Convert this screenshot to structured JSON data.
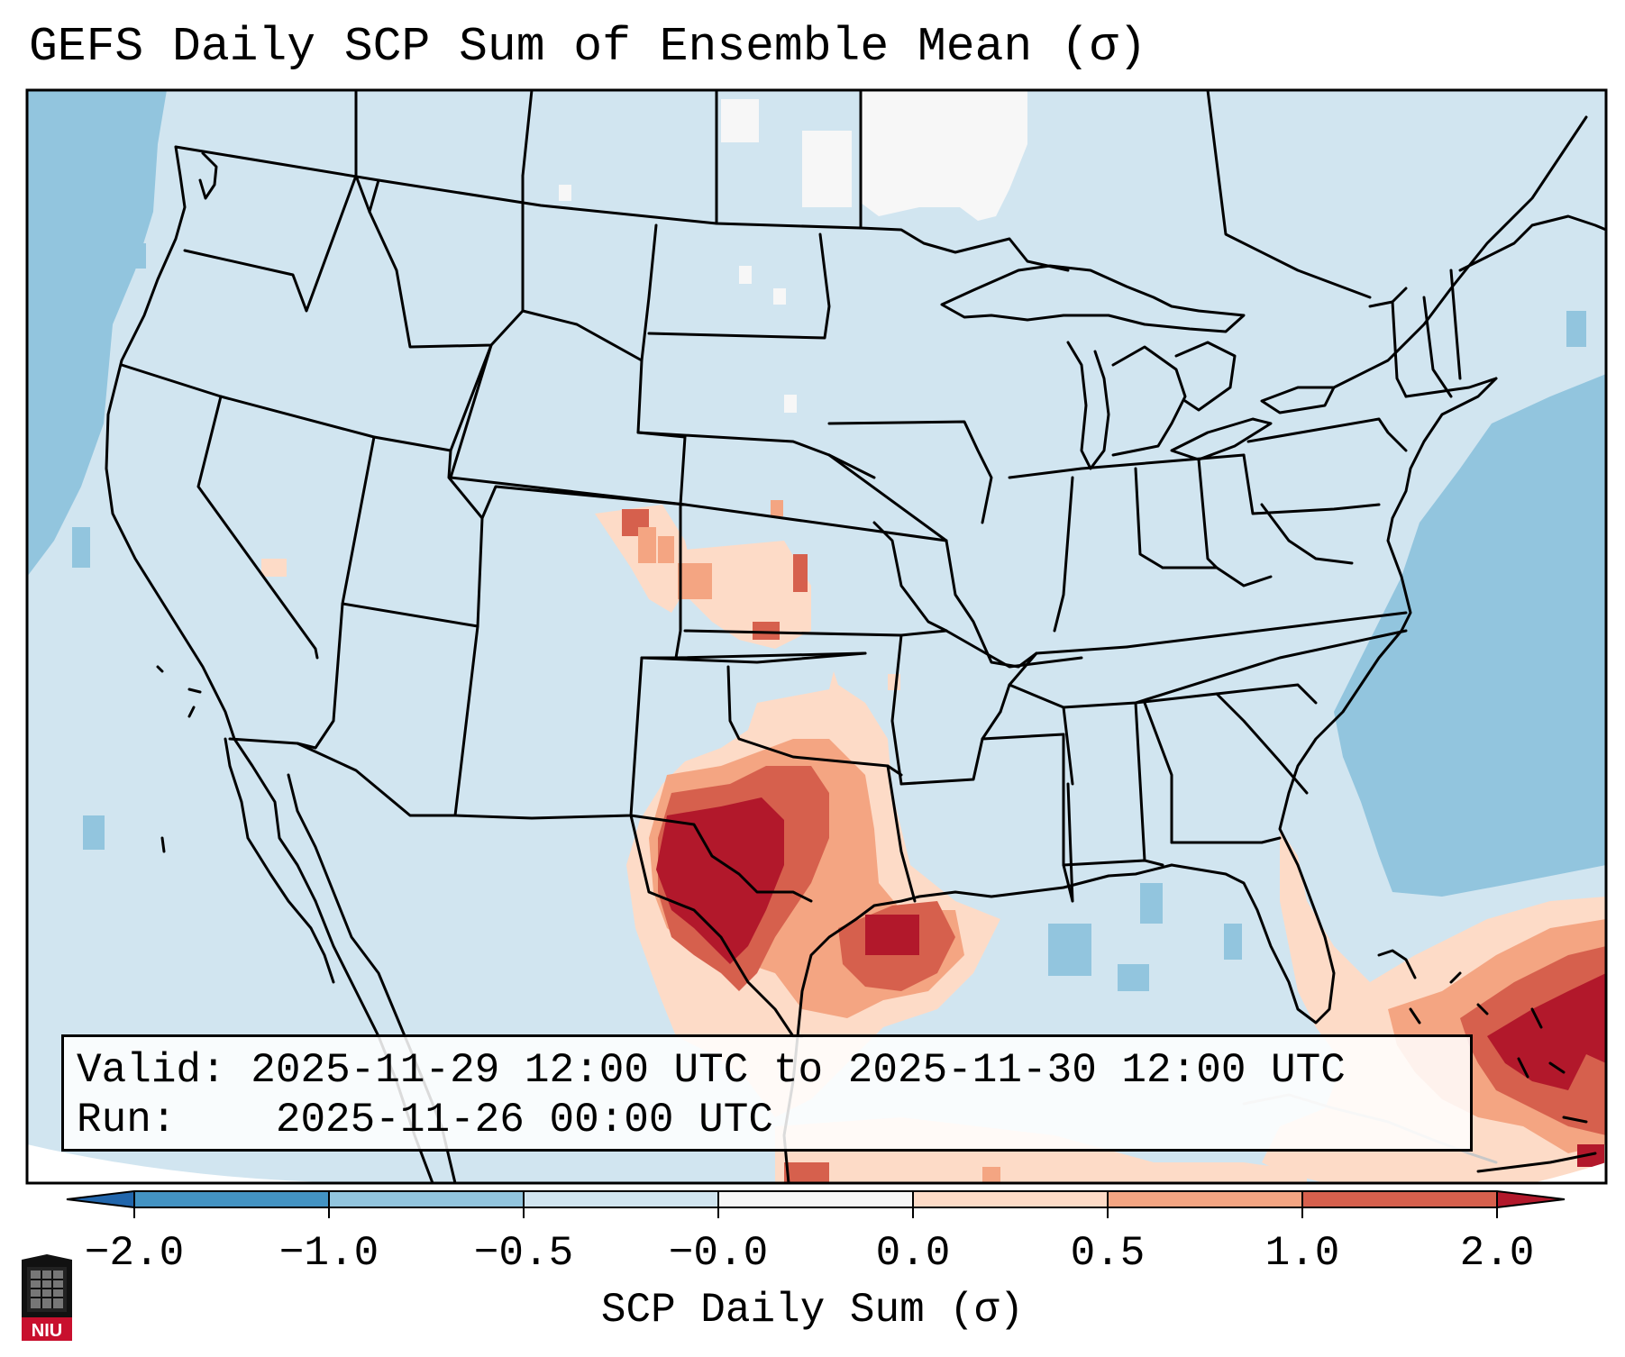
{
  "title": "GEFS Daily SCP Sum of Ensemble Mean (σ)",
  "info": {
    "valid_label": "Valid:",
    "valid_value": "2025-11-29 12:00 UTC to 2025-11-30 12:00 UTC",
    "run_label": "Run:",
    "run_value": "2025-11-26 00:00 UTC"
  },
  "colorbar": {
    "label": "SCP Daily Sum (σ)",
    "ticks": [
      "−2.0",
      "−1.0",
      "−0.5",
      "−0.0",
      "0.0",
      "0.5",
      "1.0",
      "2.0"
    ],
    "bins": [
      {
        "from": "-inf",
        "to": "-2.0",
        "color": "#2166ac"
      },
      {
        "from": "-2.0",
        "to": "-1.0",
        "color": "#4393c3"
      },
      {
        "from": "-1.0",
        "to": "-0.5",
        "color": "#92c5de"
      },
      {
        "from": "-0.5",
        "to": "-0.0",
        "color": "#d1e5f0"
      },
      {
        "from": "-0.0",
        "to": "0.0",
        "color": "#f7f7f7"
      },
      {
        "from": "0.0",
        "to": "0.5",
        "color": "#fddbc7"
      },
      {
        "from": "0.5",
        "to": "1.0",
        "color": "#f4a582"
      },
      {
        "from": "1.0",
        "to": "2.0",
        "color": "#d6604d"
      },
      {
        "from": "2.0",
        "to": "inf",
        "color": "#b2182b"
      }
    ]
  },
  "logo": {
    "text": "NIU"
  }
}
